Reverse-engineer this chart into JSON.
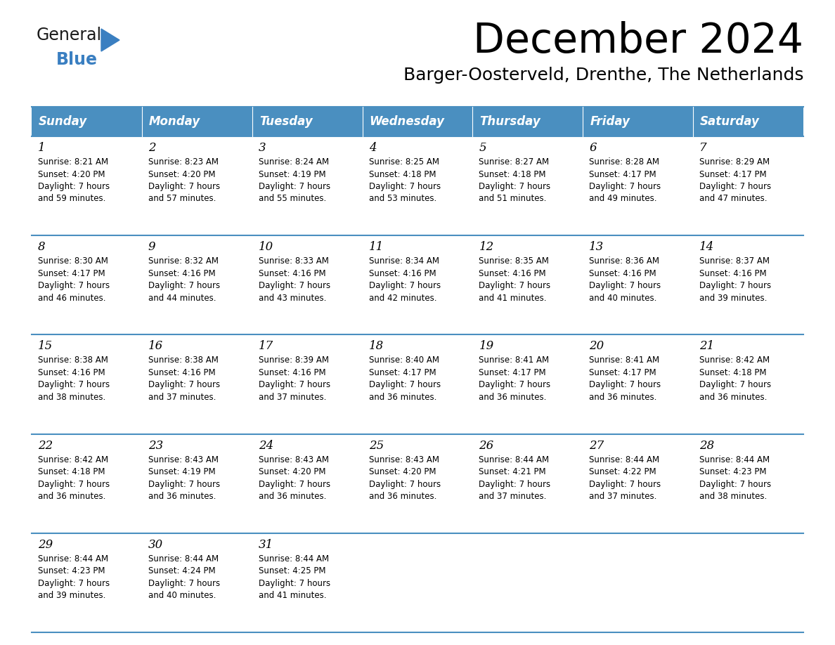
{
  "title": "December 2024",
  "subtitle": "Barger-Oosterveld, Drenthe, The Netherlands",
  "header_color": "#4A8FC0",
  "header_text_color": "#FFFFFF",
  "day_names": [
    "Sunday",
    "Monday",
    "Tuesday",
    "Wednesday",
    "Thursday",
    "Friday",
    "Saturday"
  ],
  "bg_color": "#FFFFFF",
  "cell_bg_color": "#FFFFFF",
  "grid_line_color": "#4A8FC0",
  "text_color": "#000000",
  "days": [
    {
      "day": 1,
      "col": 0,
      "row": 0,
      "sunrise": "8:21 AM",
      "sunset": "4:20 PM",
      "daylight_hours": 7,
      "daylight_minutes": 59
    },
    {
      "day": 2,
      "col": 1,
      "row": 0,
      "sunrise": "8:23 AM",
      "sunset": "4:20 PM",
      "daylight_hours": 7,
      "daylight_minutes": 57
    },
    {
      "day": 3,
      "col": 2,
      "row": 0,
      "sunrise": "8:24 AM",
      "sunset": "4:19 PM",
      "daylight_hours": 7,
      "daylight_minutes": 55
    },
    {
      "day": 4,
      "col": 3,
      "row": 0,
      "sunrise": "8:25 AM",
      "sunset": "4:18 PM",
      "daylight_hours": 7,
      "daylight_minutes": 53
    },
    {
      "day": 5,
      "col": 4,
      "row": 0,
      "sunrise": "8:27 AM",
      "sunset": "4:18 PM",
      "daylight_hours": 7,
      "daylight_minutes": 51
    },
    {
      "day": 6,
      "col": 5,
      "row": 0,
      "sunrise": "8:28 AM",
      "sunset": "4:17 PM",
      "daylight_hours": 7,
      "daylight_minutes": 49
    },
    {
      "day": 7,
      "col": 6,
      "row": 0,
      "sunrise": "8:29 AM",
      "sunset": "4:17 PM",
      "daylight_hours": 7,
      "daylight_minutes": 47
    },
    {
      "day": 8,
      "col": 0,
      "row": 1,
      "sunrise": "8:30 AM",
      "sunset": "4:17 PM",
      "daylight_hours": 7,
      "daylight_minutes": 46
    },
    {
      "day": 9,
      "col": 1,
      "row": 1,
      "sunrise": "8:32 AM",
      "sunset": "4:16 PM",
      "daylight_hours": 7,
      "daylight_minutes": 44
    },
    {
      "day": 10,
      "col": 2,
      "row": 1,
      "sunrise": "8:33 AM",
      "sunset": "4:16 PM",
      "daylight_hours": 7,
      "daylight_minutes": 43
    },
    {
      "day": 11,
      "col": 3,
      "row": 1,
      "sunrise": "8:34 AM",
      "sunset": "4:16 PM",
      "daylight_hours": 7,
      "daylight_minutes": 42
    },
    {
      "day": 12,
      "col": 4,
      "row": 1,
      "sunrise": "8:35 AM",
      "sunset": "4:16 PM",
      "daylight_hours": 7,
      "daylight_minutes": 41
    },
    {
      "day": 13,
      "col": 5,
      "row": 1,
      "sunrise": "8:36 AM",
      "sunset": "4:16 PM",
      "daylight_hours": 7,
      "daylight_minutes": 40
    },
    {
      "day": 14,
      "col": 6,
      "row": 1,
      "sunrise": "8:37 AM",
      "sunset": "4:16 PM",
      "daylight_hours": 7,
      "daylight_minutes": 39
    },
    {
      "day": 15,
      "col": 0,
      "row": 2,
      "sunrise": "8:38 AM",
      "sunset": "4:16 PM",
      "daylight_hours": 7,
      "daylight_minutes": 38
    },
    {
      "day": 16,
      "col": 1,
      "row": 2,
      "sunrise": "8:38 AM",
      "sunset": "4:16 PM",
      "daylight_hours": 7,
      "daylight_minutes": 37
    },
    {
      "day": 17,
      "col": 2,
      "row": 2,
      "sunrise": "8:39 AM",
      "sunset": "4:16 PM",
      "daylight_hours": 7,
      "daylight_minutes": 37
    },
    {
      "day": 18,
      "col": 3,
      "row": 2,
      "sunrise": "8:40 AM",
      "sunset": "4:17 PM",
      "daylight_hours": 7,
      "daylight_minutes": 36
    },
    {
      "day": 19,
      "col": 4,
      "row": 2,
      "sunrise": "8:41 AM",
      "sunset": "4:17 PM",
      "daylight_hours": 7,
      "daylight_minutes": 36
    },
    {
      "day": 20,
      "col": 5,
      "row": 2,
      "sunrise": "8:41 AM",
      "sunset": "4:17 PM",
      "daylight_hours": 7,
      "daylight_minutes": 36
    },
    {
      "day": 21,
      "col": 6,
      "row": 2,
      "sunrise": "8:42 AM",
      "sunset": "4:18 PM",
      "daylight_hours": 7,
      "daylight_minutes": 36
    },
    {
      "day": 22,
      "col": 0,
      "row": 3,
      "sunrise": "8:42 AM",
      "sunset": "4:18 PM",
      "daylight_hours": 7,
      "daylight_minutes": 36
    },
    {
      "day": 23,
      "col": 1,
      "row": 3,
      "sunrise": "8:43 AM",
      "sunset": "4:19 PM",
      "daylight_hours": 7,
      "daylight_minutes": 36
    },
    {
      "day": 24,
      "col": 2,
      "row": 3,
      "sunrise": "8:43 AM",
      "sunset": "4:20 PM",
      "daylight_hours": 7,
      "daylight_minutes": 36
    },
    {
      "day": 25,
      "col": 3,
      "row": 3,
      "sunrise": "8:43 AM",
      "sunset": "4:20 PM",
      "daylight_hours": 7,
      "daylight_minutes": 36
    },
    {
      "day": 26,
      "col": 4,
      "row": 3,
      "sunrise": "8:44 AM",
      "sunset": "4:21 PM",
      "daylight_hours": 7,
      "daylight_minutes": 37
    },
    {
      "day": 27,
      "col": 5,
      "row": 3,
      "sunrise": "8:44 AM",
      "sunset": "4:22 PM",
      "daylight_hours": 7,
      "daylight_minutes": 37
    },
    {
      "day": 28,
      "col": 6,
      "row": 3,
      "sunrise": "8:44 AM",
      "sunset": "4:23 PM",
      "daylight_hours": 7,
      "daylight_minutes": 38
    },
    {
      "day": 29,
      "col": 0,
      "row": 4,
      "sunrise": "8:44 AM",
      "sunset": "4:23 PM",
      "daylight_hours": 7,
      "daylight_minutes": 39
    },
    {
      "day": 30,
      "col": 1,
      "row": 4,
      "sunrise": "8:44 AM",
      "sunset": "4:24 PM",
      "daylight_hours": 7,
      "daylight_minutes": 40
    },
    {
      "day": 31,
      "col": 2,
      "row": 4,
      "sunrise": "8:44 AM",
      "sunset": "4:25 PM",
      "daylight_hours": 7,
      "daylight_minutes": 41
    }
  ],
  "logo_color_general": "#1a1a1a",
  "logo_color_blue": "#3a7fc1",
  "logo_triangle_color": "#3a7fc1"
}
